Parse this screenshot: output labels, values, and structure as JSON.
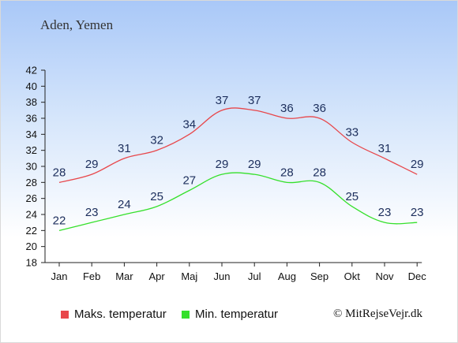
{
  "chart_data": {
    "type": "line",
    "title": "Aden, Yemen",
    "categories": [
      "Jan",
      "Feb",
      "Mar",
      "Apr",
      "Maj",
      "Jun",
      "Jul",
      "Aug",
      "Sep",
      "Okt",
      "Nov",
      "Dec"
    ],
    "ylim": [
      18,
      42
    ],
    "yticks": [
      18,
      20,
      22,
      24,
      26,
      28,
      30,
      32,
      34,
      36,
      38,
      40,
      42
    ],
    "series": [
      {
        "name": "Maks. temperatur",
        "color": "#e8474b",
        "values": [
          28,
          29,
          31,
          32,
          34,
          37,
          37,
          36,
          36,
          33,
          31,
          29
        ]
      },
      {
        "name": "Min. temperatur",
        "color": "#35e02b",
        "values": [
          22,
          23,
          24,
          25,
          27,
          29,
          29,
          28,
          28,
          25,
          23,
          23
        ]
      }
    ],
    "grid": false,
    "legend_position": "bottom"
  },
  "copyright": "© MitRejseVejr.dk"
}
